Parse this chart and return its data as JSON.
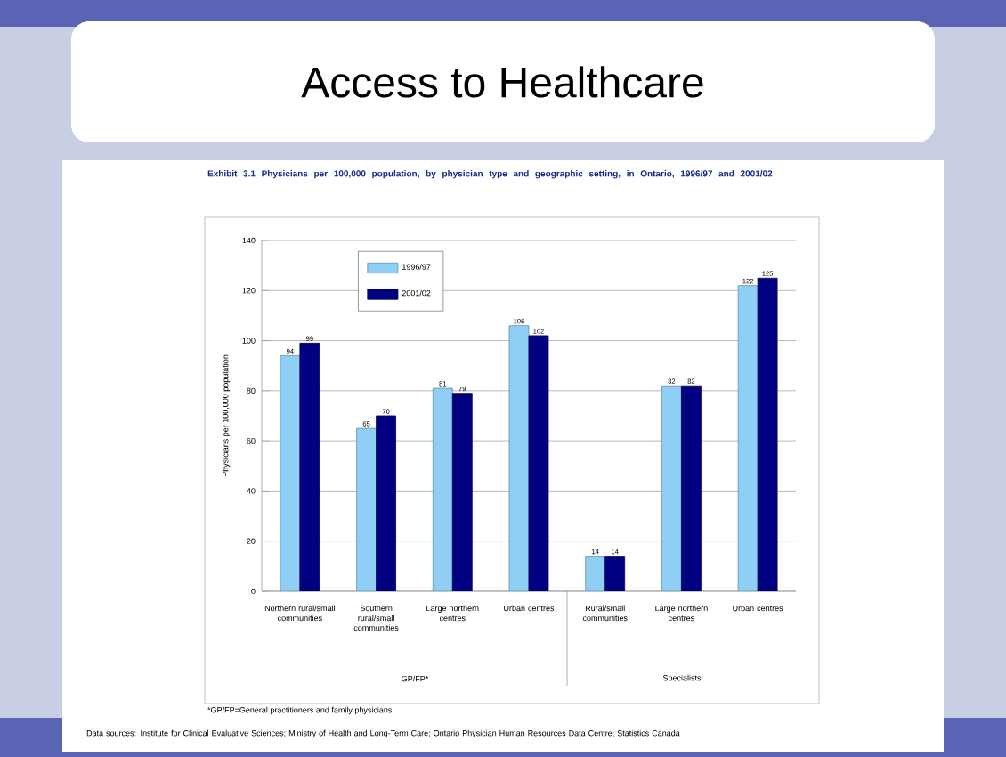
{
  "chart_data": {
    "type": "bar",
    "title": "Access to Healthcare",
    "subtitle": "Exhibit 3.1 Physicians per 100,000 population, by physician type and geographic setting, in Ontario, 1996/97 and 2001/02",
    "ylabel": "Physicians per 100,000 population",
    "categories": [
      "Northern rural/small communities",
      "Southern rural/small communities",
      "Large northern centres",
      "Urban centres",
      "Rural/small communities",
      "Large northern centres",
      "Urban centres"
    ],
    "series": [
      {
        "name": "1996/97",
        "color": "#8fcff5",
        "values": [
          94,
          65,
          81,
          106,
          14,
          82,
          122
        ]
      },
      {
        "name": "2001/02",
        "color": "#000080",
        "values": [
          99,
          70,
          79,
          102,
          14,
          82,
          125
        ]
      }
    ],
    "ylim": [
      0,
      140
    ],
    "yticks": [
      0,
      20,
      40,
      60,
      80,
      100,
      120,
      140
    ],
    "grid": "y",
    "legend": "top left",
    "data_labels": true,
    "annotations": [
      "GP/FP*",
      "Specialists",
      "*GP/FP=General practitioners and family physicians",
      "Data sources: Institute for Clinical Evaluative Sciences; Ministry of Health and Long-Term Care; Ontario Physician Human Resources Data Centre; Statistics Canada"
    ]
  }
}
